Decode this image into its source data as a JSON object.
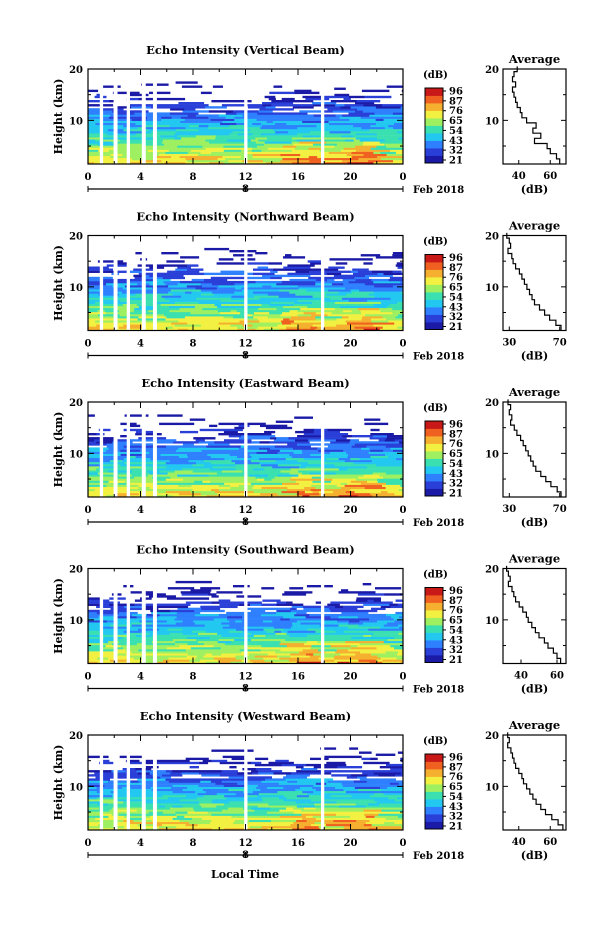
{
  "chart_data": [
    {
      "type": "heatmap",
      "title": "Echo Intensity (Vertical Beam)",
      "ylabel": "Height (km)",
      "yticks": [
        10,
        20
      ],
      "ylim": [
        1.5,
        20
      ],
      "xticks": [
        "0",
        "4",
        "8",
        "12",
        "16",
        "20",
        "0"
      ],
      "xlim": [
        0,
        24
      ],
      "date_marker": "8",
      "date_label": "Feb 2018",
      "colorbar": {
        "label": "(dB)",
        "ticks": [
          96,
          87,
          76,
          65,
          54,
          43,
          32,
          21
        ]
      },
      "data_gaps_hours": [
        [
          0.9,
          1.15
        ],
        [
          1.95,
          2.25
        ],
        [
          2.95,
          3.2
        ],
        [
          4.1,
          4.4
        ],
        [
          4.95,
          5.25
        ],
        [
          11.9,
          12.15
        ],
        [
          17.75,
          18.0
        ]
      ],
      "profile": {
        "title": "Average",
        "xlabel": "(dB)",
        "xticks": [
          40,
          60
        ],
        "xlim": [
          30,
          70
        ],
        "height_km": [
          20,
          19,
          18,
          17,
          16,
          15,
          14,
          13,
          12,
          11,
          10,
          9,
          8,
          7,
          6,
          5,
          4,
          3,
          2
        ],
        "db": [
          39,
          37,
          36,
          38,
          36,
          37,
          38,
          39,
          41,
          42,
          45,
          51,
          49,
          54,
          50,
          58,
          60,
          64,
          66
        ]
      }
    },
    {
      "type": "heatmap",
      "title": "Echo Intensity (Northward Beam)",
      "ylabel": "Height (km)",
      "yticks": [
        10,
        20
      ],
      "ylim": [
        1.5,
        20
      ],
      "xticks": [
        "0",
        "4",
        "8",
        "12",
        "16",
        "20",
        "0"
      ],
      "xlim": [
        0,
        24
      ],
      "date_marker": "8",
      "date_label": "Feb 2018",
      "colorbar": {
        "label": "(dB)",
        "ticks": [
          96,
          87,
          76,
          65,
          54,
          43,
          32,
          21
        ]
      },
      "data_gaps_hours": [
        [
          0.9,
          1.15
        ],
        [
          1.95,
          2.25
        ],
        [
          2.95,
          3.2
        ],
        [
          4.1,
          4.4
        ],
        [
          4.95,
          5.25
        ],
        [
          11.9,
          12.15
        ],
        [
          17.75,
          18.0
        ]
      ],
      "profile": {
        "title": "Average",
        "xlabel": "(dB)",
        "xticks": [
          30,
          70
        ],
        "xlim": [
          25,
          75
        ],
        "height_km": [
          20,
          19,
          18,
          17,
          16,
          15,
          14,
          13,
          12,
          11,
          10,
          9,
          8,
          7,
          6,
          5,
          4,
          3,
          2
        ],
        "db": [
          28,
          30,
          31,
          29,
          32,
          33,
          35,
          38,
          40,
          42,
          44,
          46,
          48,
          50,
          54,
          58,
          62,
          67,
          71
        ]
      }
    },
    {
      "type": "heatmap",
      "title": "Echo Intensity (Eastward Beam)",
      "ylabel": "Height (km)",
      "yticks": [
        10,
        20
      ],
      "ylim": [
        1.5,
        20
      ],
      "xticks": [
        "0",
        "4",
        "8",
        "12",
        "16",
        "20",
        "0"
      ],
      "xlim": [
        0,
        24
      ],
      "date_marker": "8",
      "date_label": "Feb 2018",
      "colorbar": {
        "label": "(dB)",
        "ticks": [
          96,
          87,
          76,
          65,
          54,
          43,
          32,
          21
        ]
      },
      "data_gaps_hours": [
        [
          0.9,
          1.15
        ],
        [
          1.95,
          2.25
        ],
        [
          2.95,
          3.2
        ],
        [
          4.1,
          4.4
        ],
        [
          4.95,
          5.25
        ],
        [
          11.9,
          12.15
        ],
        [
          17.75,
          18.0
        ]
      ],
      "profile": {
        "title": "Average",
        "xlabel": "(dB)",
        "xticks": [
          30,
          70
        ],
        "xlim": [
          25,
          75
        ],
        "height_km": [
          20,
          19,
          18,
          17,
          16,
          15,
          14,
          13,
          12,
          11,
          10,
          9,
          8,
          7,
          6,
          5,
          4,
          3,
          2
        ],
        "db": [
          29,
          31,
          30,
          32,
          31,
          34,
          36,
          39,
          41,
          43,
          45,
          47,
          49,
          51,
          55,
          59,
          63,
          68,
          71
        ]
      }
    },
    {
      "type": "heatmap",
      "title": "Echo Intensity (Southward Beam)",
      "ylabel": "Height (km)",
      "yticks": [
        10,
        20
      ],
      "ylim": [
        1.5,
        20
      ],
      "xticks": [
        "0",
        "4",
        "8",
        "12",
        "16",
        "20",
        "0"
      ],
      "xlim": [
        0,
        24
      ],
      "date_marker": "8",
      "date_label": "Feb 2018",
      "colorbar": {
        "label": "(dB)",
        "ticks": [
          96,
          87,
          76,
          65,
          54,
          43,
          32,
          21
        ]
      },
      "data_gaps_hours": [
        [
          0.9,
          1.15
        ],
        [
          1.95,
          2.25
        ],
        [
          2.95,
          3.2
        ],
        [
          4.1,
          4.4
        ],
        [
          4.95,
          5.25
        ],
        [
          11.9,
          12.15
        ],
        [
          17.75,
          18.0
        ]
      ],
      "profile": {
        "title": "Average",
        "xlabel": "(dB)",
        "xticks": [
          40,
          60
        ],
        "xlim": [
          30,
          65
        ],
        "height_km": [
          20,
          19,
          18,
          17,
          16,
          15,
          14,
          13,
          12,
          11,
          10,
          9,
          8,
          7,
          6,
          5,
          4,
          3,
          2
        ],
        "db": [
          32,
          33,
          34,
          33,
          35,
          36,
          37,
          39,
          41,
          43,
          44,
          46,
          48,
          50,
          53,
          55,
          58,
          60,
          62
        ]
      }
    },
    {
      "type": "heatmap",
      "title": "Echo Intensity (Westward Beam)",
      "ylabel": "Height (km)",
      "yticks": [
        10,
        20
      ],
      "ylim": [
        1.5,
        20
      ],
      "xticks": [
        "0",
        "4",
        "8",
        "12",
        "16",
        "20",
        "0"
      ],
      "xlim": [
        0,
        24
      ],
      "date_marker": "8",
      "date_label": "Feb 2018",
      "colorbar": {
        "label": "(dB)",
        "ticks": [
          96,
          87,
          76,
          65,
          54,
          43,
          32,
          21
        ]
      },
      "data_gaps_hours": [
        [
          0.9,
          1.15
        ],
        [
          1.95,
          2.25
        ],
        [
          2.95,
          3.2
        ],
        [
          4.1,
          4.4
        ],
        [
          4.95,
          5.25
        ],
        [
          11.9,
          12.15
        ],
        [
          17.75,
          18.0
        ]
      ],
      "profile": {
        "title": "Average",
        "xlabel": "(dB)",
        "xticks": [
          40,
          60
        ],
        "xlim": [
          30,
          70
        ],
        "height_km": [
          20,
          19,
          18,
          17,
          16,
          15,
          14,
          13,
          12,
          11,
          10,
          9,
          8,
          7,
          6,
          5,
          4,
          3,
          2
        ],
        "db": [
          33,
          34,
          33,
          35,
          36,
          37,
          38,
          40,
          42,
          43,
          45,
          47,
          49,
          51,
          54,
          57,
          61,
          65,
          68
        ]
      }
    }
  ],
  "xlabel": "Local Time",
  "colors": {
    "colormap": [
      "#1a1aa6",
      "#2a3fd8",
      "#2f80ff",
      "#22c8f0",
      "#3be0b0",
      "#9ef060",
      "#f2f040",
      "#f6b030",
      "#f06020",
      "#c81818"
    ],
    "axis": "#000000",
    "background": "#ffffff"
  }
}
